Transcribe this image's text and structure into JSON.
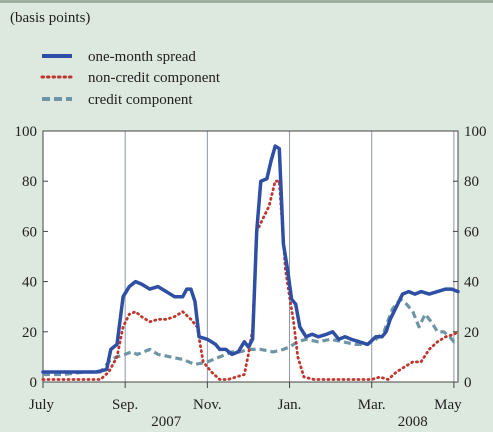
{
  "chart_data": {
    "type": "line",
    "subtitle": "(basis points)",
    "ylim": [
      0,
      100
    ],
    "yticks": [
      0,
      20,
      40,
      60,
      80,
      100
    ],
    "grid": "vertical",
    "legend_placement": "top-left",
    "x_ticks": [
      {
        "label": "July",
        "x": 0
      },
      {
        "label": "Sep.",
        "x": 2
      },
      {
        "label": "Nov.",
        "x": 4
      },
      {
        "label": "Jan.",
        "x": 6
      },
      {
        "label": "Mar.",
        "x": 8
      },
      {
        "label": "May",
        "x": 10
      }
    ],
    "year_labels": [
      {
        "label": "2007",
        "x": 3
      },
      {
        "label": "2008",
        "x": 9
      }
    ],
    "series": [
      {
        "name": "one-month spread",
        "color": "#2e4fa3",
        "style": "solid",
        "points": [
          [
            0,
            4
          ],
          [
            0.3,
            4
          ],
          [
            0.6,
            4
          ],
          [
            1,
            4
          ],
          [
            1.3,
            4
          ],
          [
            1.55,
            5
          ],
          [
            1.65,
            13
          ],
          [
            1.8,
            15
          ],
          [
            1.95,
            34
          ],
          [
            2.1,
            38
          ],
          [
            2.25,
            40
          ],
          [
            2.4,
            39
          ],
          [
            2.6,
            37
          ],
          [
            2.8,
            38
          ],
          [
            3.0,
            36
          ],
          [
            3.2,
            34
          ],
          [
            3.4,
            34
          ],
          [
            3.5,
            37
          ],
          [
            3.6,
            37
          ],
          [
            3.7,
            32
          ],
          [
            3.8,
            18
          ],
          [
            4.0,
            17
          ],
          [
            4.2,
            15
          ],
          [
            4.3,
            13
          ],
          [
            4.45,
            13
          ],
          [
            4.6,
            11
          ],
          [
            4.75,
            12
          ],
          [
            4.9,
            16
          ],
          [
            5.0,
            14
          ],
          [
            5.1,
            17
          ],
          [
            5.2,
            60
          ],
          [
            5.3,
            80
          ],
          [
            5.45,
            81
          ],
          [
            5.55,
            88
          ],
          [
            5.65,
            94
          ],
          [
            5.75,
            93
          ],
          [
            5.85,
            55
          ],
          [
            5.95,
            45
          ],
          [
            6.05,
            33
          ],
          [
            6.15,
            31
          ],
          [
            6.25,
            22
          ],
          [
            6.4,
            18
          ],
          [
            6.55,
            19
          ],
          [
            6.7,
            18
          ],
          [
            6.9,
            19
          ],
          [
            7.05,
            20
          ],
          [
            7.2,
            17
          ],
          [
            7.35,
            18
          ],
          [
            7.5,
            17
          ],
          [
            7.7,
            16
          ],
          [
            7.9,
            15
          ],
          [
            8.1,
            18
          ],
          [
            8.25,
            18
          ],
          [
            8.35,
            20
          ],
          [
            8.45,
            25
          ],
          [
            8.6,
            30
          ],
          [
            8.75,
            35
          ],
          [
            8.9,
            36
          ],
          [
            9.05,
            35
          ],
          [
            9.2,
            36
          ],
          [
            9.4,
            35
          ],
          [
            9.6,
            36
          ],
          [
            9.8,
            37
          ],
          [
            9.95,
            37
          ],
          [
            10.1,
            36
          ]
        ]
      },
      {
        "name": "non-credit component",
        "color": "#c0352c",
        "style": "dotted",
        "points": [
          [
            0,
            1
          ],
          [
            0.5,
            1
          ],
          [
            1,
            1
          ],
          [
            1.4,
            1
          ],
          [
            1.6,
            4
          ],
          [
            1.8,
            10
          ],
          [
            1.95,
            22
          ],
          [
            2.1,
            27
          ],
          [
            2.25,
            28
          ],
          [
            2.4,
            26
          ],
          [
            2.6,
            24
          ],
          [
            2.8,
            25
          ],
          [
            3.0,
            25
          ],
          [
            3.2,
            26
          ],
          [
            3.4,
            28
          ],
          [
            3.6,
            25
          ],
          [
            3.75,
            22
          ],
          [
            3.9,
            8
          ],
          [
            4.1,
            4
          ],
          [
            4.3,
            1
          ],
          [
            4.5,
            1
          ],
          [
            4.7,
            2
          ],
          [
            4.9,
            3
          ],
          [
            5.0,
            11
          ],
          [
            5.1,
            21
          ],
          [
            5.2,
            60
          ],
          [
            5.35,
            65
          ],
          [
            5.5,
            70
          ],
          [
            5.65,
            80
          ],
          [
            5.75,
            80
          ],
          [
            5.9,
            45
          ],
          [
            6.0,
            34
          ],
          [
            6.1,
            24
          ],
          [
            6.2,
            10
          ],
          [
            6.35,
            2
          ],
          [
            6.6,
            1
          ],
          [
            7.0,
            1
          ],
          [
            7.5,
            1
          ],
          [
            8.0,
            1
          ],
          [
            8.2,
            2
          ],
          [
            8.4,
            1
          ],
          [
            8.6,
            4
          ],
          [
            8.8,
            6
          ],
          [
            9.0,
            8
          ],
          [
            9.2,
            8
          ],
          [
            9.4,
            13
          ],
          [
            9.6,
            16
          ],
          [
            9.8,
            18
          ],
          [
            10.0,
            19
          ],
          [
            10.1,
            20
          ]
        ]
      },
      {
        "name": "credit component",
        "color": "#6e95a6",
        "style": "dashed",
        "points": [
          [
            0,
            3
          ],
          [
            0.5,
            3
          ],
          [
            1,
            4
          ],
          [
            1.4,
            4
          ],
          [
            1.65,
            9
          ],
          [
            1.8,
            10
          ],
          [
            2.0,
            11
          ],
          [
            2.15,
            12
          ],
          [
            2.3,
            11
          ],
          [
            2.6,
            13
          ],
          [
            2.8,
            11
          ],
          [
            3.1,
            10
          ],
          [
            3.4,
            9
          ],
          [
            3.7,
            7
          ],
          [
            4.0,
            8
          ],
          [
            4.3,
            10
          ],
          [
            4.6,
            12
          ],
          [
            4.8,
            12
          ],
          [
            5.0,
            13
          ],
          [
            5.3,
            13
          ],
          [
            5.6,
            12
          ],
          [
            5.85,
            13
          ],
          [
            6.0,
            14
          ],
          [
            6.2,
            16
          ],
          [
            6.4,
            17
          ],
          [
            6.7,
            16
          ],
          [
            7.0,
            17
          ],
          [
            7.3,
            16
          ],
          [
            7.6,
            15
          ],
          [
            7.9,
            15
          ],
          [
            8.1,
            17
          ],
          [
            8.3,
            20
          ],
          [
            8.5,
            29
          ],
          [
            8.7,
            33
          ],
          [
            8.85,
            31
          ],
          [
            9.0,
            28
          ],
          [
            9.15,
            22
          ],
          [
            9.3,
            27
          ],
          [
            9.45,
            24
          ],
          [
            9.6,
            20
          ],
          [
            9.75,
            20
          ],
          [
            9.9,
            18
          ],
          [
            10.0,
            16
          ],
          [
            10.1,
            17
          ]
        ]
      }
    ]
  }
}
